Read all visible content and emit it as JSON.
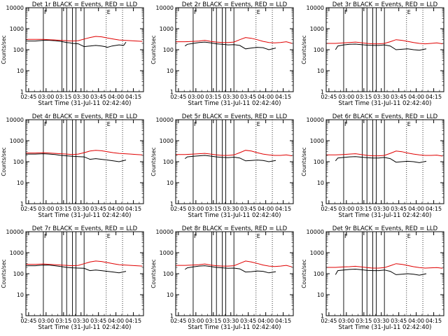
{
  "figure": {
    "xlabel": "Start Time (31-Jul-11 02:42:40)",
    "ylabel": "Counts/sec",
    "xtick_labels": [
      "02:45",
      "03:00",
      "03:15",
      "03:30",
      "03:45",
      "04:00",
      "04:15"
    ],
    "ytick_labels": [
      "1",
      "10",
      "100",
      "1000",
      "10000"
    ],
    "colors": {
      "events": "#000000",
      "lld": "#e00000",
      "axes": "#000000"
    }
  },
  "chart_data": [
    {
      "type": "line",
      "title": "Det 1r BLACK = Events, RED = LLD",
      "x_unit": "minutes since 02:42:40",
      "xlim": [
        0,
        101
      ],
      "ylim": [
        1,
        10000
      ],
      "yscale": "log",
      "vlines_solid": [
        15,
        31,
        35,
        40,
        43,
        50
      ],
      "vlines_dotted": [
        69,
        83
      ],
      "flag_markers": [
        "F",
        "E"
      ],
      "series": [
        {
          "name": "BLACK = Events",
          "x": [
            0,
            8,
            15,
            20,
            25,
            30,
            35,
            38,
            40,
            45,
            50,
            55,
            60,
            65,
            68,
            70,
            74,
            80,
            84,
            86
          ],
          "y": [
            260,
            260,
            280,
            280,
            270,
            250,
            220,
            210,
            200,
            190,
            140,
            150,
            160,
            150,
            140,
            130,
            150,
            170,
            160,
            230
          ]
        },
        {
          "name": "RED = LLD",
          "x": [
            0,
            8,
            15,
            20,
            25,
            30,
            35,
            40,
            45,
            50,
            55,
            60,
            65,
            70,
            75,
            80,
            85,
            90,
            95,
            100
          ],
          "y": [
            310,
            310,
            310,
            300,
            290,
            280,
            270,
            260,
            270,
            320,
            380,
            430,
            410,
            360,
            320,
            290,
            280,
            270,
            260,
            250
          ]
        }
      ]
    },
    {
      "type": "line",
      "title": "Det 2r BLACK = Events, RED = LLD",
      "x_unit": "minutes since 02:42:40",
      "xlim": [
        0,
        101
      ],
      "ylim": [
        1,
        10000
      ],
      "yscale": "log",
      "vlines_solid": [
        15,
        31,
        35,
        40,
        43,
        50
      ],
      "vlines_dotted": [
        69,
        83
      ],
      "flag_markers": [
        "F",
        "E"
      ],
      "series": [
        {
          "name": "BLACK = Events",
          "x": [
            8,
            10,
            15,
            20,
            25,
            30,
            35,
            40,
            45,
            50,
            55,
            60,
            65,
            70,
            75,
            80,
            86
          ],
          "y": [
            150,
            180,
            200,
            220,
            230,
            210,
            190,
            180,
            170,
            175,
            160,
            110,
            120,
            130,
            125,
            100,
            120
          ]
        },
        {
          "name": "RED = LLD",
          "x": [
            0,
            8,
            15,
            20,
            25,
            30,
            35,
            40,
            45,
            50,
            55,
            60,
            65,
            70,
            75,
            80,
            85,
            90,
            95,
            100
          ],
          "y": [
            240,
            240,
            250,
            260,
            280,
            250,
            230,
            220,
            220,
            230,
            300,
            380,
            350,
            300,
            250,
            220,
            210,
            220,
            240,
            200
          ]
        }
      ]
    },
    {
      "type": "line",
      "title": "Det 3r BLACK = Events, RED = LLD",
      "x_unit": "minutes since 02:42:40",
      "xlim": [
        0,
        101
      ],
      "ylim": [
        1,
        10000
      ],
      "yscale": "log",
      "vlines_solid": [
        15,
        31,
        35,
        40,
        43,
        50
      ],
      "vlines_dotted": [
        69,
        83
      ],
      "flag_markers": [
        "F",
        "E"
      ],
      "series": [
        {
          "name": "BLACK = Events",
          "x": [
            8,
            10,
            15,
            20,
            25,
            30,
            35,
            40,
            45,
            50,
            55,
            60,
            65,
            70,
            75,
            80,
            86
          ],
          "y": [
            100,
            150,
            170,
            180,
            185,
            175,
            165,
            160,
            160,
            170,
            150,
            100,
            105,
            110,
            100,
            95,
            110
          ]
        },
        {
          "name": "RED = LLD",
          "x": [
            0,
            8,
            15,
            20,
            25,
            30,
            35,
            40,
            45,
            50,
            55,
            60,
            65,
            70,
            75,
            80,
            85,
            90,
            95,
            100
          ],
          "y": [
            200,
            200,
            210,
            220,
            230,
            215,
            200,
            190,
            190,
            200,
            240,
            300,
            280,
            250,
            220,
            200,
            190,
            200,
            210,
            190
          ]
        }
      ]
    },
    {
      "type": "line",
      "title": "Det 4r BLACK = Events, RED = LLD",
      "x_unit": "minutes since 02:42:40",
      "xlim": [
        0,
        101
      ],
      "ylim": [
        1,
        10000
      ],
      "yscale": "log",
      "vlines_solid": [
        15,
        31,
        35,
        40,
        43,
        50
      ],
      "vlines_dotted": [
        69,
        83
      ],
      "flag_markers": [
        "F",
        "E"
      ],
      "series": [
        {
          "name": "BLACK = Events",
          "x": [
            0,
            8,
            15,
            20,
            25,
            30,
            35,
            40,
            45,
            50,
            55,
            60,
            65,
            70,
            75,
            80,
            86
          ],
          "y": [
            230,
            230,
            240,
            230,
            220,
            200,
            190,
            180,
            175,
            170,
            130,
            140,
            130,
            120,
            110,
            100,
            120
          ]
        },
        {
          "name": "RED = LLD",
          "x": [
            0,
            8,
            15,
            20,
            25,
            30,
            35,
            40,
            45,
            50,
            55,
            60,
            65,
            70,
            75,
            80,
            85,
            90,
            95,
            100
          ],
          "y": [
            260,
            260,
            270,
            260,
            250,
            240,
            230,
            220,
            230,
            270,
            320,
            350,
            330,
            300,
            270,
            250,
            240,
            230,
            220,
            210
          ]
        }
      ]
    },
    {
      "type": "line",
      "title": "Det 5r BLACK = Events, RED = LLD",
      "x_unit": "minutes since 02:42:40",
      "xlim": [
        0,
        101
      ],
      "ylim": [
        1,
        10000
      ],
      "yscale": "log",
      "vlines_solid": [
        15,
        31,
        35,
        40,
        43,
        50
      ],
      "vlines_dotted": [
        69,
        83
      ],
      "flag_markers": [
        "F",
        "E"
      ],
      "series": [
        {
          "name": "BLACK = Events",
          "x": [
            8,
            10,
            15,
            20,
            25,
            30,
            35,
            40,
            45,
            50,
            55,
            60,
            65,
            70,
            75,
            80,
            86
          ],
          "y": [
            140,
            170,
            180,
            190,
            200,
            185,
            170,
            160,
            155,
            165,
            150,
            110,
            115,
            120,
            115,
            100,
            115
          ]
        },
        {
          "name": "RED = LLD",
          "x": [
            0,
            8,
            15,
            20,
            25,
            30,
            35,
            40,
            45,
            50,
            55,
            60,
            65,
            70,
            75,
            80,
            85,
            90,
            95,
            100
          ],
          "y": [
            220,
            220,
            230,
            240,
            250,
            230,
            210,
            200,
            200,
            210,
            270,
            350,
            320,
            270,
            230,
            210,
            200,
            200,
            210,
            190
          ]
        }
      ]
    },
    {
      "type": "line",
      "title": "Det 6r BLACK = Events, RED = LLD",
      "x_unit": "minutes since 02:42:40",
      "xlim": [
        0,
        101
      ],
      "ylim": [
        1,
        10000
      ],
      "yscale": "log",
      "vlines_solid": [
        15,
        31,
        35,
        40,
        43,
        50
      ],
      "vlines_dotted": [
        69,
        83
      ],
      "flag_markers": [
        "F",
        "E"
      ],
      "series": [
        {
          "name": "BLACK = Events",
          "x": [
            8,
            10,
            15,
            20,
            25,
            30,
            35,
            40,
            45,
            50,
            55,
            60,
            65,
            70,
            75,
            80,
            86
          ],
          "y": [
            110,
            150,
            160,
            170,
            175,
            165,
            155,
            150,
            150,
            160,
            140,
            95,
            100,
            105,
            100,
            90,
            105
          ]
        },
        {
          "name": "RED = LLD",
          "x": [
            0,
            8,
            15,
            20,
            25,
            30,
            35,
            40,
            45,
            50,
            55,
            60,
            65,
            70,
            75,
            80,
            85,
            90,
            95,
            100
          ],
          "y": [
            210,
            210,
            220,
            230,
            240,
            220,
            200,
            190,
            190,
            200,
            250,
            320,
            300,
            260,
            230,
            210,
            200,
            200,
            205,
            185
          ]
        }
      ]
    },
    {
      "type": "line",
      "title": "Det 7r BLACK = Events, RED = LLD",
      "x_unit": "minutes since 02:42:40",
      "xlim": [
        0,
        101
      ],
      "ylim": [
        1,
        10000
      ],
      "yscale": "log",
      "vlines_solid": [
        15,
        31,
        35,
        40,
        43,
        50
      ],
      "vlines_dotted": [
        69,
        83
      ],
      "flag_markers": [
        "F",
        "E"
      ],
      "series": [
        {
          "name": "BLACK = Events",
          "x": [
            0,
            8,
            15,
            20,
            25,
            30,
            35,
            40,
            45,
            50,
            55,
            60,
            65,
            70,
            75,
            80,
            86
          ],
          "y": [
            240,
            240,
            260,
            255,
            240,
            220,
            200,
            190,
            185,
            180,
            140,
            150,
            140,
            130,
            120,
            110,
            130
          ]
        },
        {
          "name": "RED = LLD",
          "x": [
            0,
            8,
            15,
            20,
            25,
            30,
            35,
            40,
            45,
            50,
            55,
            60,
            65,
            70,
            75,
            80,
            85,
            90,
            95,
            100
          ],
          "y": [
            280,
            280,
            290,
            280,
            270,
            260,
            250,
            240,
            250,
            300,
            360,
            400,
            380,
            340,
            300,
            270,
            260,
            250,
            240,
            230
          ]
        }
      ]
    },
    {
      "type": "line",
      "title": "Det 8r BLACK = Events, RED = LLD",
      "x_unit": "minutes since 02:42:40",
      "xlim": [
        0,
        101
      ],
      "ylim": [
        1,
        10000
      ],
      "yscale": "log",
      "vlines_solid": [
        15,
        31,
        35,
        40,
        43,
        50
      ],
      "vlines_dotted": [
        69,
        83
      ],
      "flag_markers": [
        "F",
        "E"
      ],
      "series": [
        {
          "name": "BLACK = Events",
          "x": [
            8,
            10,
            15,
            20,
            25,
            30,
            35,
            40,
            45,
            50,
            55,
            60,
            65,
            70,
            75,
            80,
            86
          ],
          "y": [
            160,
            190,
            210,
            230,
            240,
            220,
            200,
            190,
            180,
            185,
            170,
            120,
            125,
            135,
            130,
            110,
            125
          ]
        },
        {
          "name": "RED = LLD",
          "x": [
            0,
            8,
            15,
            20,
            25,
            30,
            35,
            40,
            45,
            50,
            55,
            60,
            65,
            70,
            75,
            80,
            85,
            90,
            95,
            100
          ],
          "y": [
            250,
            250,
            260,
            270,
            290,
            260,
            240,
            230,
            230,
            240,
            310,
            400,
            360,
            310,
            260,
            230,
            220,
            230,
            250,
            210
          ]
        }
      ]
    },
    {
      "type": "line",
      "title": "Det 9r BLACK = Events, RED = LLD",
      "x_unit": "minutes since 02:42:40",
      "xlim": [
        0,
        101
      ],
      "ylim": [
        1,
        10000
      ],
      "yscale": "log",
      "vlines_solid": [
        15,
        31,
        35,
        40,
        43,
        50
      ],
      "vlines_dotted": [
        69,
        83
      ],
      "flag_markers": [
        "F",
        "E"
      ],
      "series": [
        {
          "name": "BLACK = Events",
          "x": [
            8,
            10,
            15,
            20,
            25,
            30,
            35,
            40,
            45,
            50,
            55,
            60,
            65,
            70,
            75,
            80,
            86
          ],
          "y": [
            90,
            140,
            150,
            160,
            165,
            155,
            145,
            140,
            140,
            150,
            130,
            90,
            95,
            100,
            95,
            85,
            100
          ]
        },
        {
          "name": "RED = LLD",
          "x": [
            0,
            8,
            15,
            20,
            25,
            30,
            35,
            40,
            45,
            50,
            55,
            60,
            65,
            70,
            75,
            80,
            85,
            90,
            95,
            100
          ],
          "y": [
            200,
            200,
            210,
            215,
            225,
            210,
            195,
            185,
            185,
            195,
            240,
            300,
            280,
            245,
            215,
            195,
            185,
            190,
            195,
            180
          ]
        }
      ]
    }
  ]
}
